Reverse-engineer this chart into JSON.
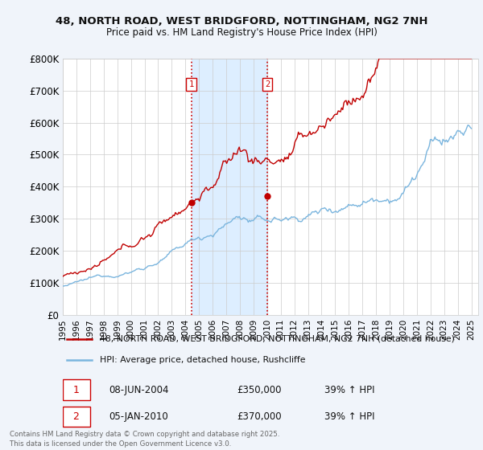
{
  "title1": "48, NORTH ROAD, WEST BRIDGFORD, NOTTINGHAM, NG2 7NH",
  "title2": "Price paid vs. HM Land Registry's House Price Index (HPI)",
  "bg_color": "#f0f4fa",
  "plot_bg": "#ffffff",
  "legend_line1": "48, NORTH ROAD, WEST BRIDGFORD, NOTTINGHAM, NG2 7NH (detached house)",
  "legend_line2": "HPI: Average price, detached house, Rushcliffe",
  "sale1_date": "08-JUN-2004",
  "sale1_price": "£350,000",
  "sale1_hpi": "39% ↑ HPI",
  "sale2_date": "05-JAN-2010",
  "sale2_price": "£370,000",
  "sale2_hpi": "39% ↑ HPI",
  "footer": "Contains HM Land Registry data © Crown copyright and database right 2025.\nThis data is licensed under the Open Government Licence v3.0.",
  "sale1_year": 2004.44,
  "sale2_year": 2010.01,
  "sale1_value": 350000,
  "sale2_value": 370000,
  "hpi_color": "#7ab5de",
  "price_color": "#c00000",
  "vline_color": "#cc0000",
  "highlight_color": "#ddeeff",
  "ylim": [
    0,
    800000
  ],
  "xlim_start": 1995,
  "xlim_end": 2025.5
}
